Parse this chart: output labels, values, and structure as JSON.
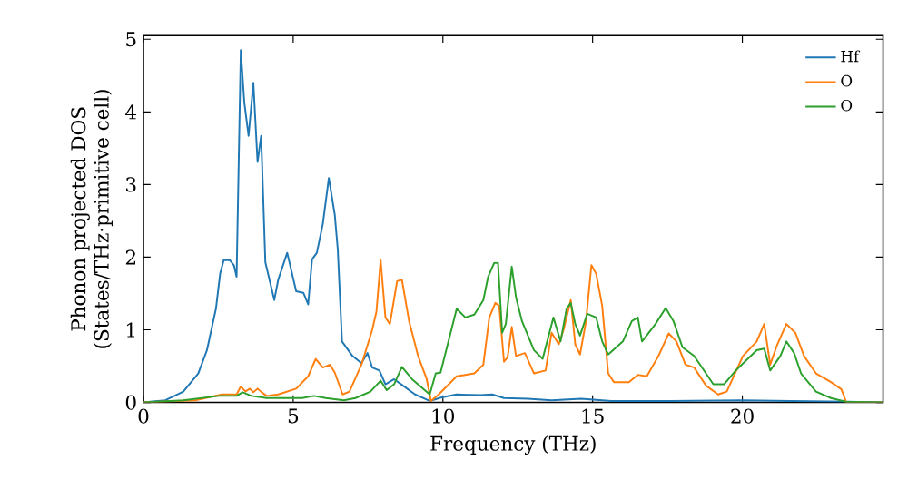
{
  "chart_data": {
    "type": "line",
    "xlabel": "Frequency (THz)",
    "ylabel": "Phonon projected DOS\n(States/THz·primitive cell)",
    "xlim": [
      0,
      24.7
    ],
    "ylim": [
      0,
      5.05
    ],
    "xticks": [
      0,
      5,
      10,
      15,
      20
    ],
    "yticks": [
      0,
      1,
      2,
      3,
      4,
      5
    ],
    "legend": "top right",
    "grid": false,
    "series": [
      {
        "name": "Hf",
        "color": "#1f77b4",
        "x": [
          0,
          0.73,
          1.33,
          1.83,
          2.12,
          2.42,
          2.56,
          2.68,
          2.88,
          3.02,
          3.11,
          3.25,
          3.37,
          3.51,
          3.67,
          3.81,
          3.93,
          4.07,
          4.37,
          4.5,
          4.8,
          5.1,
          5.34,
          5.5,
          5.63,
          5.79,
          5.99,
          6.19,
          6.39,
          6.49,
          6.63,
          6.98,
          7.28,
          7.48,
          7.64,
          7.88,
          8.08,
          8.37,
          8.67,
          9.07,
          9.56,
          9.96,
          10.46,
          11.25,
          11.65,
          12.04,
          12.84,
          13.63,
          14.62,
          15.62,
          17.6,
          20,
          21.6,
          23.45,
          24.68
        ],
        "values": [
          0,
          0.03,
          0.15,
          0.4,
          0.72,
          1.29,
          1.77,
          1.96,
          1.96,
          1.89,
          1.73,
          4.85,
          4.12,
          3.67,
          4.4,
          3.31,
          3.67,
          1.93,
          1.41,
          1.69,
          2.06,
          1.53,
          1.51,
          1.35,
          1.97,
          2.06,
          2.46,
          3.09,
          2.58,
          2.1,
          0.84,
          0.64,
          0.54,
          0.68,
          0.48,
          0.44,
          0.25,
          0.32,
          0.23,
          0.11,
          0.02,
          0.07,
          0.11,
          0.1,
          0.11,
          0.06,
          0.05,
          0.03,
          0.05,
          0.02,
          0.02,
          0.03,
          0.02,
          0.01,
          0
        ]
      },
      {
        "name": "O",
        "color": "#ff7f0e",
        "x": [
          0,
          1.73,
          2.62,
          3.11,
          3.25,
          3.41,
          3.55,
          3.67,
          3.81,
          3.95,
          4.11,
          4.5,
          5.1,
          5.5,
          5.75,
          5.99,
          6.23,
          6.39,
          6.65,
          6.88,
          7.28,
          7.64,
          7.78,
          7.92,
          8.08,
          8.23,
          8.47,
          8.63,
          8.87,
          9.17,
          9.46,
          9.6,
          9.86,
          10.46,
          11.05,
          11.35,
          11.55,
          11.75,
          11.88,
          12.04,
          12.16,
          12.3,
          12.44,
          12.74,
          13.04,
          13.43,
          13.63,
          13.87,
          14.03,
          14.27,
          14.42,
          14.58,
          14.78,
          14.96,
          15.12,
          15.32,
          15.52,
          15.71,
          16.21,
          16.51,
          16.81,
          17.2,
          17.54,
          17.8,
          18.1,
          18.39,
          18.79,
          19.19,
          19.48,
          20.02,
          20.48,
          20.73,
          20.93,
          21.17,
          21.47,
          21.77,
          22.06,
          22.46,
          22.96,
          23.31,
          23.47,
          24.68
        ],
        "values": [
          0,
          0.03,
          0.11,
          0.11,
          0.22,
          0.15,
          0.19,
          0.14,
          0.19,
          0.14,
          0.09,
          0.11,
          0.19,
          0.36,
          0.6,
          0.48,
          0.52,
          0.41,
          0.11,
          0.15,
          0.52,
          1.0,
          1.25,
          1.96,
          1.17,
          1.08,
          1.67,
          1.69,
          1.12,
          0.64,
          0.32,
          0.02,
          0.11,
          0.36,
          0.4,
          0.52,
          1.17,
          1.37,
          1.33,
          0.56,
          0.62,
          1.04,
          0.64,
          0.68,
          0.4,
          0.44,
          0.96,
          0.8,
          1.0,
          1.41,
          0.8,
          0.66,
          1.12,
          1.89,
          1.77,
          1.33,
          0.4,
          0.28,
          0.28,
          0.38,
          0.36,
          0.64,
          0.95,
          0.84,
          0.52,
          0.48,
          0.23,
          0.11,
          0.15,
          0.64,
          0.84,
          1.08,
          0.52,
          0.8,
          1.08,
          0.96,
          0.64,
          0.4,
          0.28,
          0.18,
          0,
          0
        ]
      },
      {
        "name": "O",
        "color": "#2ca02c",
        "x": [
          0,
          1.33,
          2.52,
          3.11,
          3.31,
          3.61,
          4.11,
          5.3,
          5.69,
          6.09,
          6.69,
          7.08,
          7.58,
          7.92,
          8.12,
          8.37,
          8.63,
          8.97,
          9.56,
          9.76,
          9.92,
          10.16,
          10.46,
          10.75,
          11.05,
          11.35,
          11.51,
          11.71,
          11.84,
          11.98,
          12.1,
          12.3,
          12.44,
          12.64,
          13.04,
          13.33,
          13.69,
          13.93,
          14.13,
          14.27,
          14.42,
          14.58,
          14.82,
          15.12,
          15.32,
          15.52,
          16.01,
          16.31,
          16.51,
          16.65,
          17.1,
          17.44,
          17.7,
          18.0,
          18.39,
          18.59,
          19.03,
          19.39,
          19.78,
          20.08,
          20.48,
          20.73,
          20.93,
          21.27,
          21.47,
          21.73,
          21.96,
          22.46,
          22.96,
          23.45,
          24.68
        ],
        "values": [
          0,
          0.03,
          0.09,
          0.09,
          0.14,
          0.09,
          0.06,
          0.06,
          0.09,
          0.06,
          0.03,
          0.06,
          0.15,
          0.3,
          0.17,
          0.25,
          0.49,
          0.32,
          0.11,
          0.4,
          0.41,
          0.8,
          1.29,
          1.17,
          1.21,
          1.41,
          1.73,
          1.92,
          1.92,
          0.96,
          1.08,
          1.87,
          1.45,
          1.12,
          0.72,
          0.6,
          1.17,
          0.84,
          1.29,
          1.37,
          1.08,
          0.92,
          1.22,
          1.17,
          0.84,
          0.66,
          0.84,
          1.12,
          1.17,
          0.84,
          1.08,
          1.3,
          1.12,
          0.76,
          0.64,
          0.52,
          0.25,
          0.25,
          0.44,
          0.56,
          0.72,
          0.74,
          0.44,
          0.64,
          0.84,
          0.68,
          0.4,
          0.15,
          0.06,
          0.01,
          0
        ]
      }
    ]
  }
}
